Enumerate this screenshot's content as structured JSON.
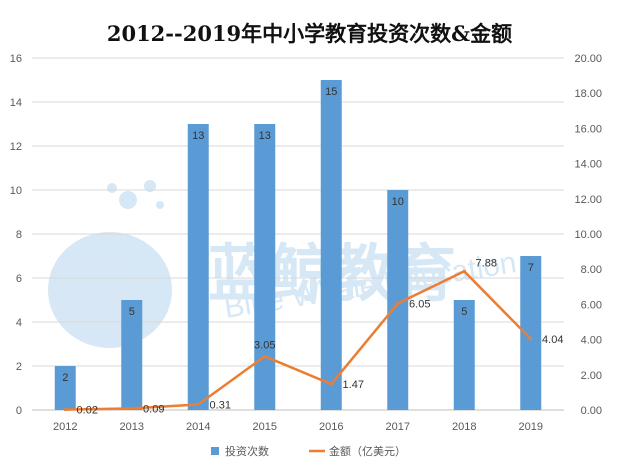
{
  "chart_data": {
    "type": "bar+line",
    "title": "2012--2019年中小学教育投资次数&金额",
    "categories": [
      "2012",
      "2013",
      "2014",
      "2015",
      "2016",
      "2017",
      "2018",
      "2019"
    ],
    "series": [
      {
        "name": "投资次数",
        "type": "bar",
        "axis": "left",
        "values": [
          2,
          5,
          13,
          13,
          15,
          10,
          5,
          7
        ],
        "color": "#5B9BD5"
      },
      {
        "name": "金额（亿美元）",
        "type": "line",
        "axis": "right",
        "values": [
          0.02,
          0.09,
          0.31,
          3.05,
          1.47,
          6.05,
          7.88,
          4.04
        ],
        "color": "#ED7D31"
      }
    ],
    "y_left": {
      "ylim": [
        0,
        16
      ],
      "ticks": [
        "0",
        "2",
        "4",
        "6",
        "8",
        "10",
        "12",
        "14",
        "16"
      ]
    },
    "y_right": {
      "ylim": [
        0,
        20
      ],
      "ticks": [
        "0.00",
        "2.00",
        "4.00",
        "6.00",
        "8.00",
        "10.00",
        "12.00",
        "14.00",
        "16.00",
        "18.00",
        "20.00"
      ]
    },
    "grid": true,
    "legend_position": "bottom"
  },
  "watermark": {
    "brand": "蓝鲸教育",
    "english": "Blue Whale Education",
    "color": "#c9dff2"
  }
}
